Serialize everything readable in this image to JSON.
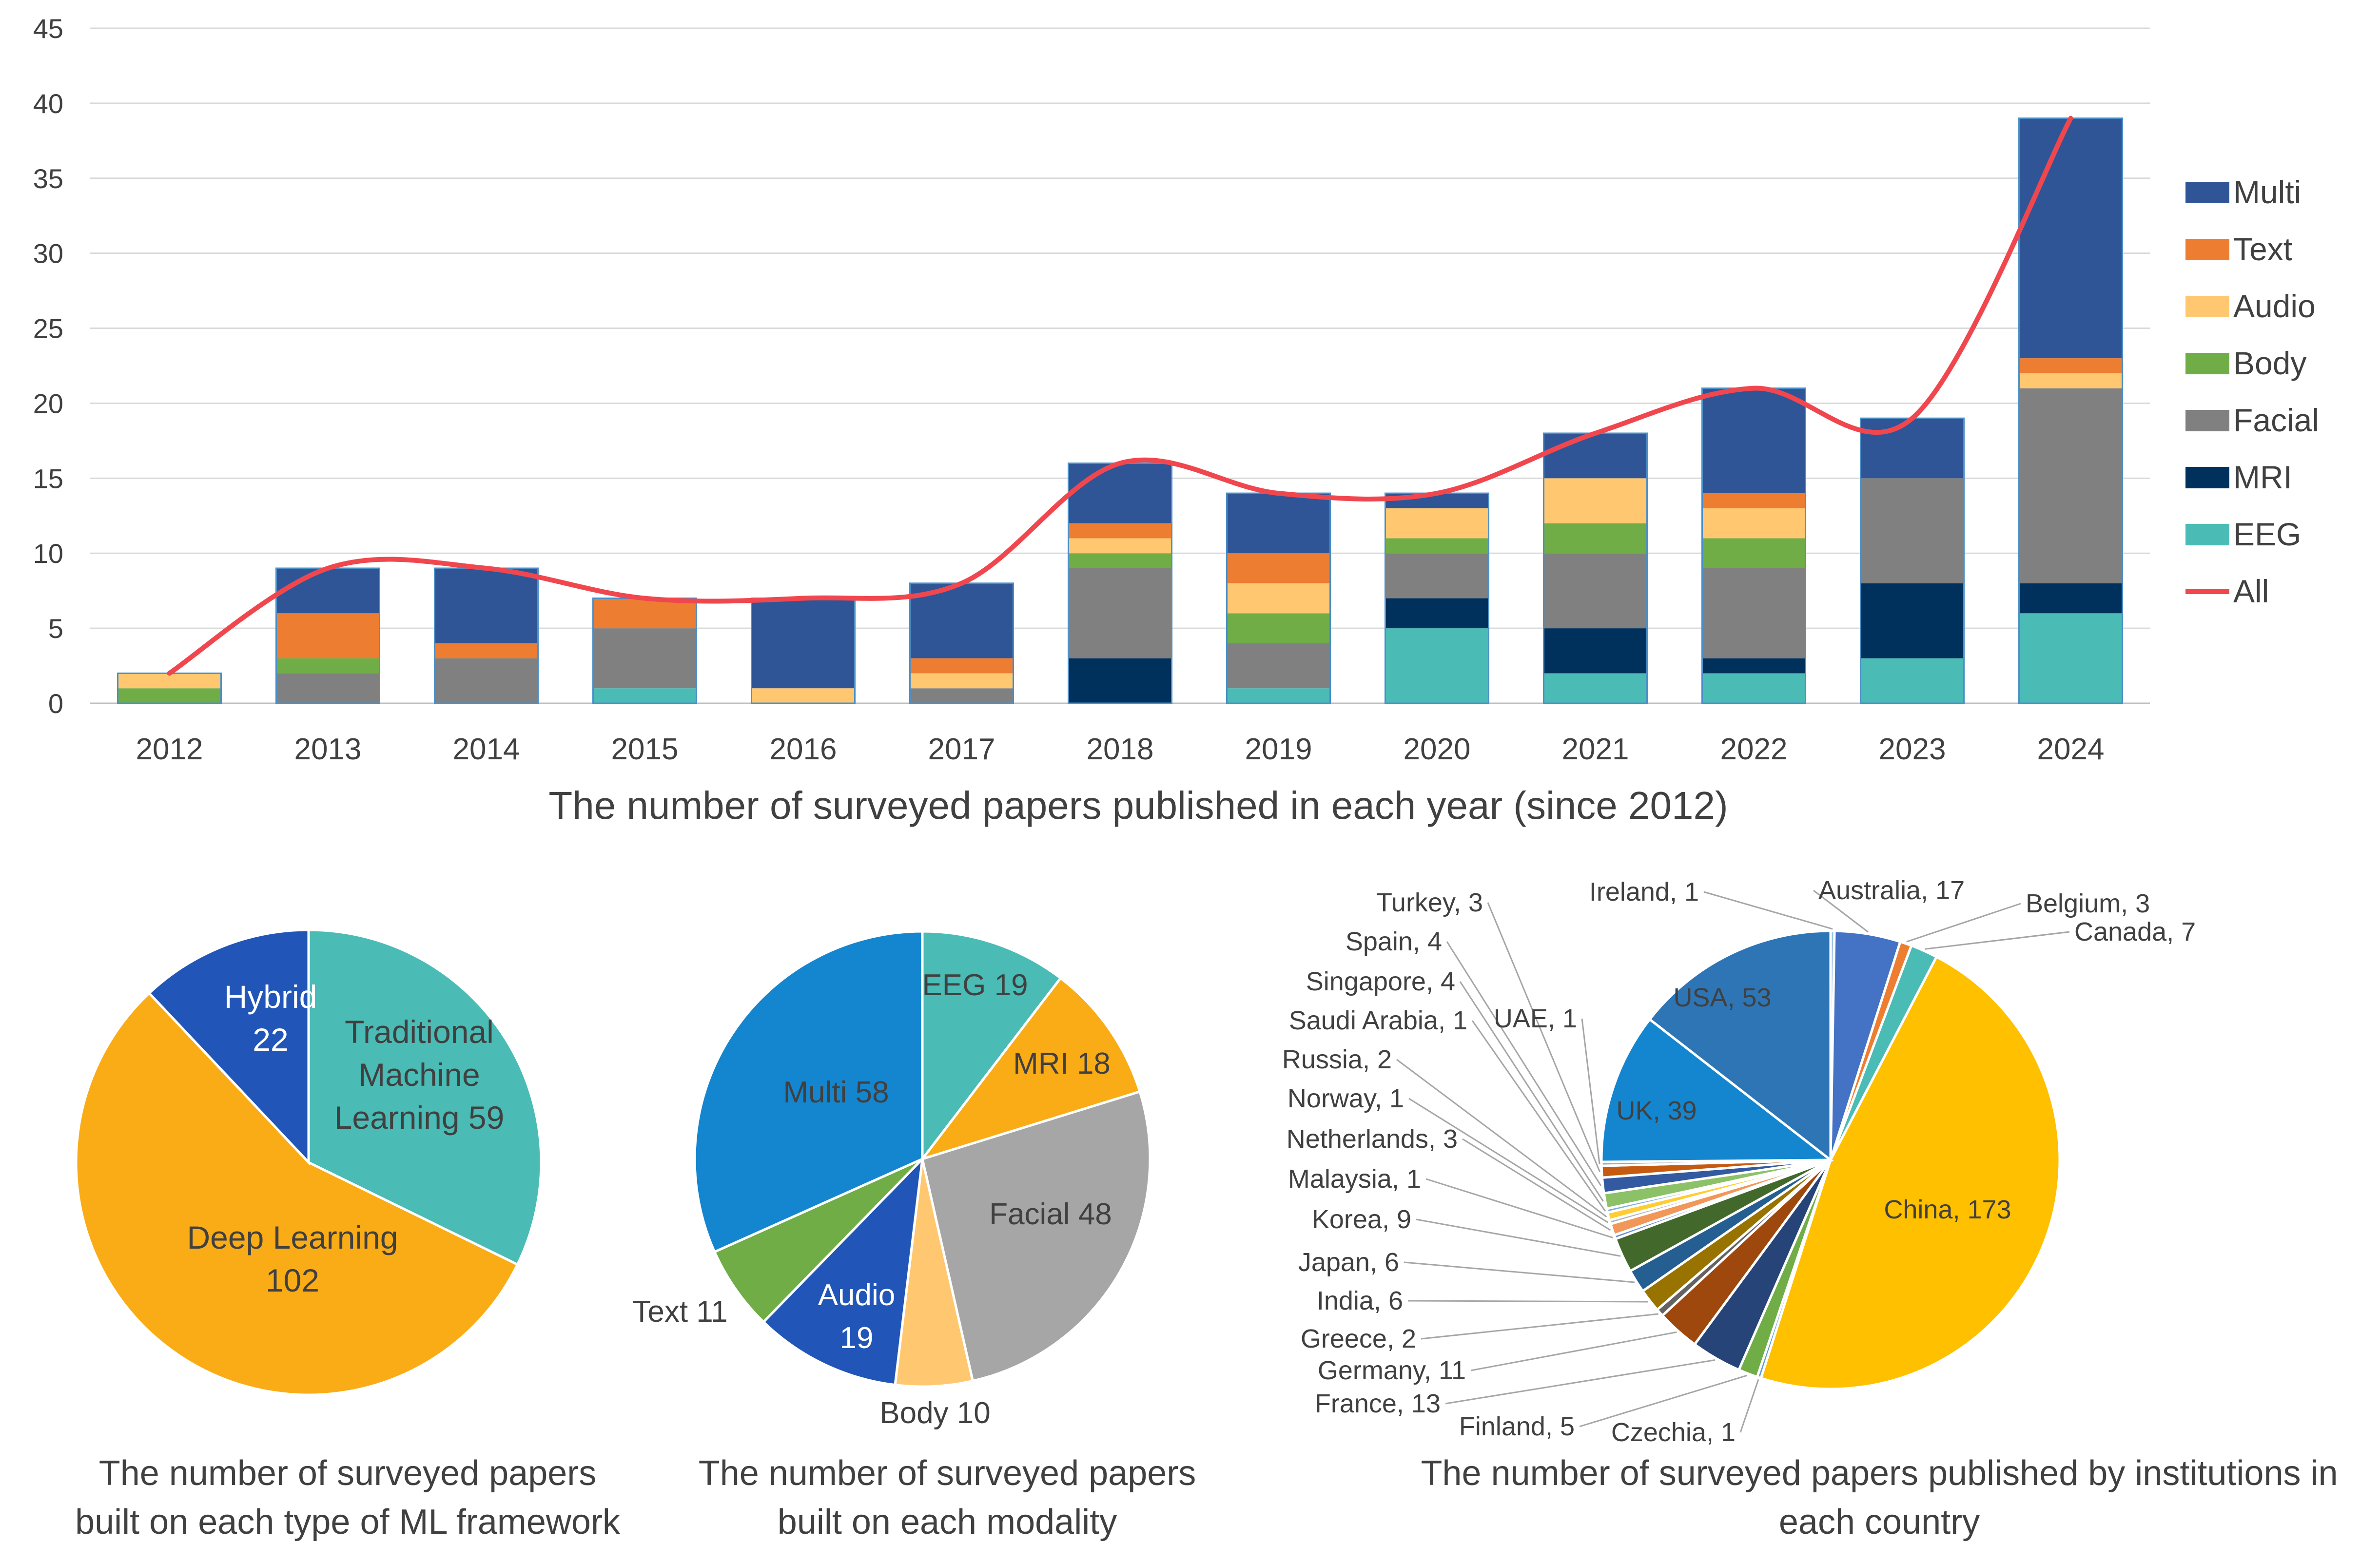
{
  "chart_data": [
    {
      "type": "bar",
      "stacked": true,
      "title": "The number of surveyed papers published in each year (since 2012)",
      "xlabel": "",
      "ylabel": "",
      "ylim": [
        0,
        45
      ],
      "yticks": [
        0,
        5,
        10,
        15,
        20,
        25,
        30,
        35,
        40,
        45
      ],
      "grid": true,
      "legend_position": "right",
      "categories": [
        "2012",
        "2013",
        "2014",
        "2015",
        "2016",
        "2017",
        "2018",
        "2019",
        "2020",
        "2021",
        "2022",
        "2023",
        "2024"
      ],
      "series": [
        {
          "name": "EEG",
          "color": "#4ABBB5",
          "values": [
            0,
            0,
            0,
            1,
            0,
            0,
            0,
            1,
            5,
            2,
            2,
            3,
            6
          ]
        },
        {
          "name": "MRI",
          "color": "#00305C",
          "values": [
            0,
            0,
            0,
            0,
            0,
            0,
            3,
            0,
            2,
            3,
            1,
            5,
            2
          ]
        },
        {
          "name": "Facial",
          "color": "#808080",
          "values": [
            0,
            2,
            3,
            4,
            0,
            1,
            6,
            3,
            3,
            5,
            6,
            7,
            13
          ]
        },
        {
          "name": "Body",
          "color": "#70AD47",
          "values": [
            1,
            1,
            0,
            0,
            0,
            0,
            1,
            2,
            1,
            2,
            2,
            0,
            0
          ]
        },
        {
          "name": "Audio",
          "color": "#FFC870",
          "values": [
            1,
            0,
            0,
            0,
            1,
            1,
            1,
            2,
            2,
            3,
            2,
            0,
            1
          ]
        },
        {
          "name": "Text",
          "color": "#ED7D31",
          "values": [
            0,
            3,
            1,
            2,
            0,
            1,
            1,
            2,
            0,
            0,
            1,
            0,
            1
          ]
        },
        {
          "name": "Multi",
          "color": "#2F5597",
          "values": [
            0,
            3,
            5,
            0,
            6,
            5,
            4,
            4,
            1,
            3,
            7,
            4,
            16
          ]
        }
      ],
      "line": {
        "name": "All",
        "color": "#F0474F",
        "values": [
          2,
          9,
          9,
          7,
          7,
          8,
          16,
          14,
          14,
          18,
          21,
          19,
          39
        ]
      },
      "legend_order": [
        "Multi",
        "Text",
        "Audio",
        "Body",
        "Facial",
        "MRI",
        "EEG",
        "All"
      ]
    },
    {
      "type": "pie",
      "title": "The number of surveyed papers built on each type of ML framework",
      "title_lines": [
        "The number of surveyed papers",
        "built on each type of ML framework"
      ],
      "slices": [
        {
          "label": "Traditional Machine Learning",
          "value": 59,
          "color": "#4ABBB5",
          "label_lines": [
            "Traditional",
            "Machine",
            "Learning  59"
          ]
        },
        {
          "label": "Deep Learning",
          "value": 102,
          "color": "#FAAC17",
          "label_lines": [
            "Deep Learning",
            "102"
          ]
        },
        {
          "label": "Hybrid",
          "value": 22,
          "color": "#2156B8",
          "label_lines": [
            "Hybrid",
            "22"
          ]
        }
      ]
    },
    {
      "type": "pie",
      "title": "The number of surveyed papers built on each modality",
      "title_lines": [
        "The number of surveyed papers",
        "built on each modality"
      ],
      "slices": [
        {
          "label": "EEG",
          "value": 19,
          "color": "#4ABBB5",
          "label_lines": [
            "EEG 19"
          ]
        },
        {
          "label": "MRI",
          "value": 18,
          "color": "#FAAC17",
          "label_lines": [
            "MRI 18"
          ]
        },
        {
          "label": "Facial",
          "value": 48,
          "color": "#A6A6A6",
          "label_lines": [
            "Facial 48"
          ]
        },
        {
          "label": "Body",
          "value": 10,
          "color": "#FFC870",
          "label_lines": [
            "Body 10"
          ]
        },
        {
          "label": "Audio",
          "value": 19,
          "color": "#2156B8",
          "label_lines": [
            "Audio",
            "19"
          ]
        },
        {
          "label": "Text",
          "value": 11,
          "color": "#70AD47",
          "label_lines": [
            "Text 11"
          ]
        },
        {
          "label": "Multi",
          "value": 58,
          "color": "#1486D0",
          "label_lines": [
            "Multi 58"
          ]
        }
      ]
    },
    {
      "type": "pie",
      "title": "The number of surveyed papers published by institutions in each country",
      "title_lines": [
        "The number of surveyed papers published by institutions in",
        "each country"
      ],
      "slices": [
        {
          "label": "Ireland, 1",
          "value": 1,
          "color": "#9DC3E6"
        },
        {
          "label": "Australia, 17",
          "value": 17,
          "color": "#4472C4"
        },
        {
          "label": "Belgium, 3",
          "value": 3,
          "color": "#ED7D31"
        },
        {
          "label": "Canada, 7",
          "value": 7,
          "color": "#4ABBB5"
        },
        {
          "label": "China, 173",
          "value": 173,
          "color": "#FFC000"
        },
        {
          "label": "Czechia, 1",
          "value": 1,
          "color": "#5B9BD5"
        },
        {
          "label": "Finland, 5",
          "value": 5,
          "color": "#70AD47"
        },
        {
          "label": "France, 13",
          "value": 13,
          "color": "#264478"
        },
        {
          "label": "Germany, 11",
          "value": 11,
          "color": "#9E480E"
        },
        {
          "label": "Greece, 2",
          "value": 2,
          "color": "#636363"
        },
        {
          "label": "India, 6",
          "value": 6,
          "color": "#997300"
        },
        {
          "label": "Japan, 6",
          "value": 6,
          "color": "#255E91"
        },
        {
          "label": "Korea, 9",
          "value": 9,
          "color": "#43682B"
        },
        {
          "label": "Malaysia, 1",
          "value": 1,
          "color": "#698ED0"
        },
        {
          "label": "Netherlands, 3",
          "value": 3,
          "color": "#F1975A"
        },
        {
          "label": "Norway, 1",
          "value": 1,
          "color": "#B7B7B7"
        },
        {
          "label": "Russia, 2",
          "value": 2,
          "color": "#FFCD33"
        },
        {
          "label": "Saudi Arabia, 1",
          "value": 1,
          "color": "#7CAFDD"
        },
        {
          "label": "Singapore, 4",
          "value": 4,
          "color": "#8CC168"
        },
        {
          "label": "Spain, 4",
          "value": 4,
          "color": "#335AA1"
        },
        {
          "label": "Turkey, 3",
          "value": 3,
          "color": "#C55A11"
        },
        {
          "label": "UAE, 1",
          "value": 1,
          "color": "#A5A5A5"
        },
        {
          "label": "UK, 39",
          "value": 39,
          "color": "#1486D0"
        },
        {
          "label": "USA, 53",
          "value": 53,
          "color": "#2E75B6"
        }
      ]
    }
  ]
}
